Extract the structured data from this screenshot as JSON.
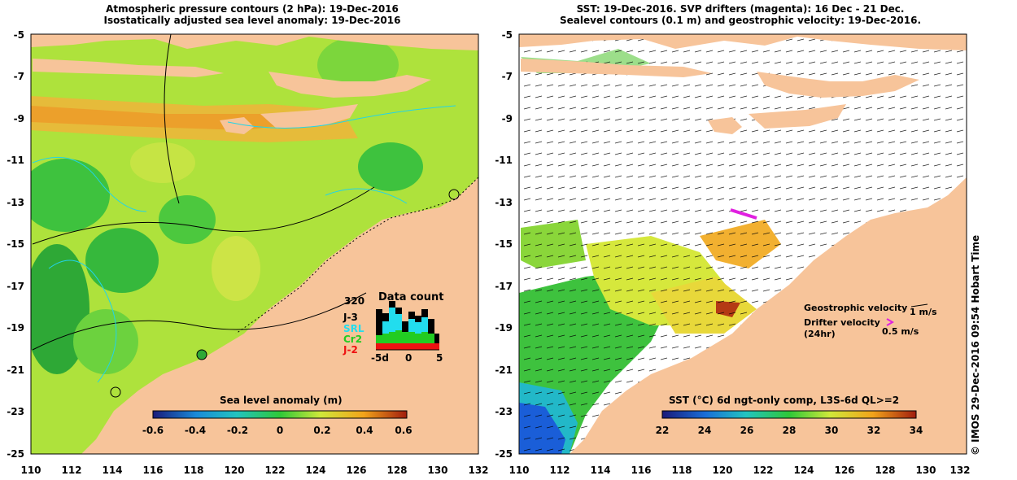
{
  "left_panel": {
    "title_line1": "Atmospheric pressure contours (2 hPa): 19-Dec-2016",
    "title_line2": "Isostatically adjusted sea level anomaly: 19-Dec-2016",
    "colorbar_title": "Sea level anomaly (m)",
    "colorbar_ticks": [
      "-0.6",
      "-0.4",
      "-0.2",
      "0",
      "0.2",
      "0.4",
      "0.6"
    ],
    "data_count": {
      "title": "Data count",
      "max_label": "320",
      "x_ticks": [
        "-5d",
        "0",
        "5"
      ],
      "legend": [
        {
          "label": "J-3",
          "color": "#000000"
        },
        {
          "label": "SRL",
          "color": "#22ddee"
        },
        {
          "label": "Cr2",
          "color": "#22cc22"
        },
        {
          "label": "J-2",
          "color": "#ee1111"
        }
      ]
    }
  },
  "right_panel": {
    "title_line1": "SST: 19-Dec-2016. SVP drifters (magenta): 16 Dec - 21 Dec.",
    "title_line2": "Sealevel contours (0.1 m) and geostrophic velocity: 19-Dec-2016.",
    "colorbar_title": "SST (°C) 6d ngt-only comp, L3S-6d QL>=2",
    "colorbar_ticks": [
      "22",
      "24",
      "26",
      "28",
      "30",
      "32",
      "34"
    ],
    "legend": {
      "geostrophic_label": "Geostrophic velocity",
      "geostrophic_scale": "1 m/s",
      "drifter_label": "Drifter velocity",
      "drifter_sub": "(24hr)",
      "drifter_scale": "0.5 m/s"
    }
  },
  "axes": {
    "lon_ticks": [
      "110",
      "112",
      "114",
      "116",
      "118",
      "120",
      "122",
      "124",
      "126",
      "128",
      "130",
      "132"
    ],
    "lat_ticks": [
      "-5",
      "-7",
      "-9",
      "-11",
      "-13",
      "-15",
      "-17",
      "-19",
      "-21",
      "-23",
      "-25"
    ]
  },
  "copyright": "© IMOS 29-Dec-2016 09:54 Hobart Time"
}
